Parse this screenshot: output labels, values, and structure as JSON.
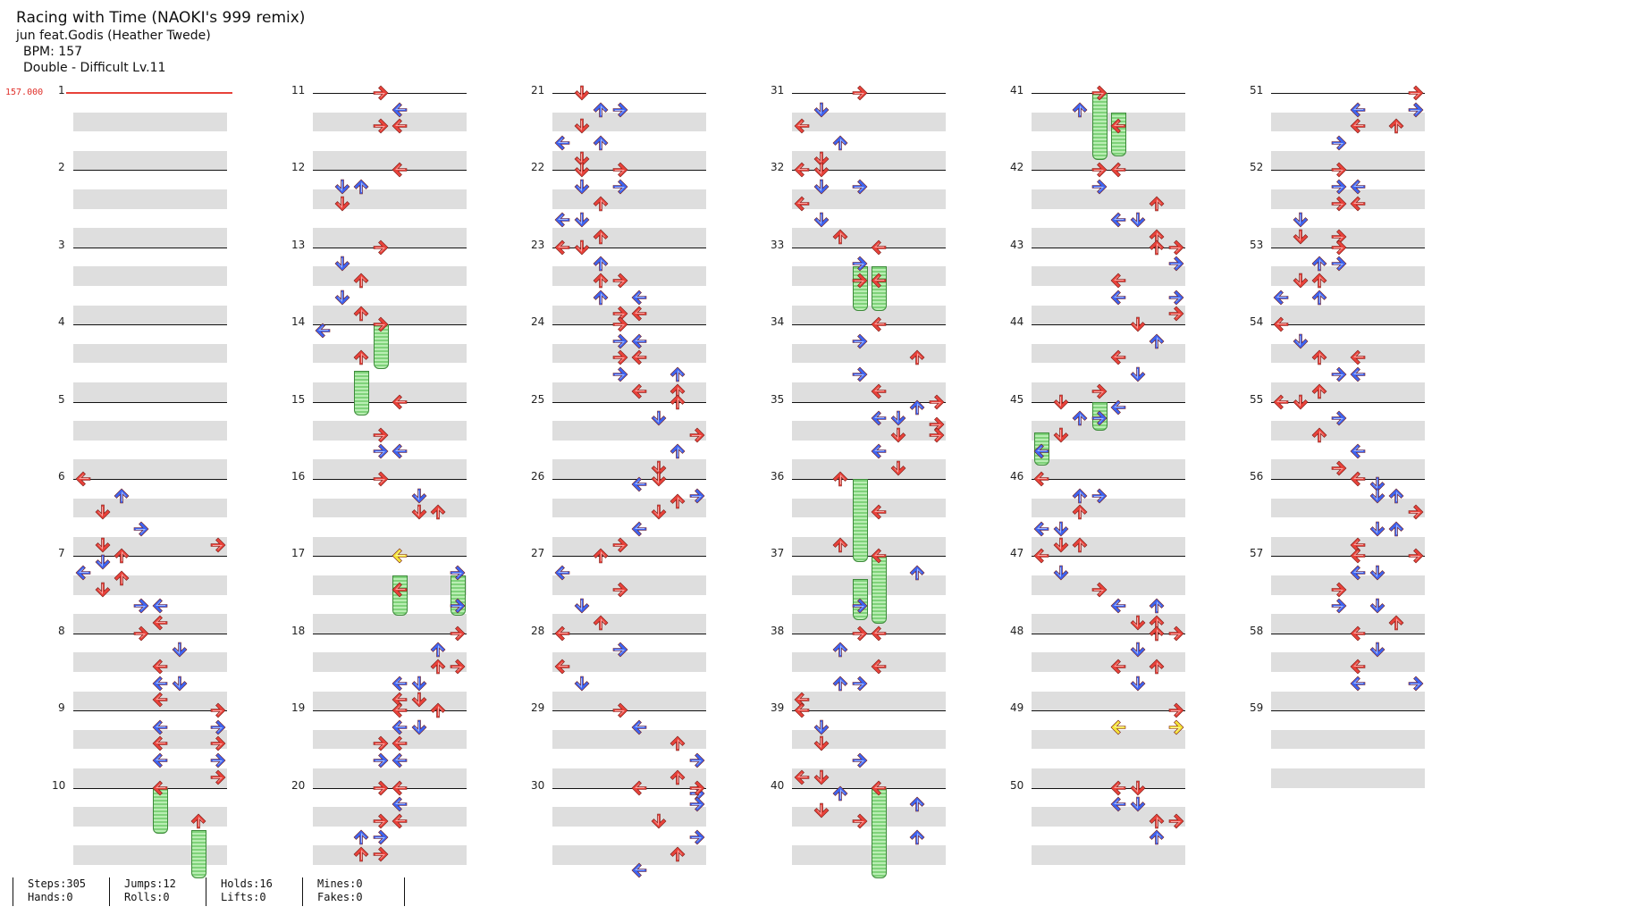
{
  "song": {
    "title": "Racing with Time (NAOKI's 999 remix)",
    "artist": "jun feat.Godis (Heather Twede)",
    "bpm_label": "BPM: 157",
    "difficulty": "Double - Difficult Lv.11"
  },
  "bpm_marker": "157.000",
  "colors": {
    "red": "#e8423a",
    "blue": "#3e64f0",
    "yellow": "#f4e437",
    "green": "#7fd27a",
    "band": "#dedede"
  },
  "stats": [
    {
      "a": "Steps:305",
      "b": "Hands:0"
    },
    {
      "a": "Jumps:12",
      "b": "Rolls:0"
    },
    {
      "a": "Holds:16",
      "b": "Lifts:0"
    },
    {
      "a": "Mines:0",
      "b": "Fakes:0"
    }
  ],
  "measures": [
    {
      "n": "1",
      "notes": []
    },
    {
      "n": "2",
      "notes": []
    },
    {
      "n": "3",
      "notes": []
    },
    {
      "n": "4",
      "notes": []
    },
    {
      "n": "5",
      "notes": []
    },
    {
      "n": "6",
      "notes": [
        [
          0,
          0
        ],
        [
          1,
          2
        ],
        [
          2,
          1
        ],
        [
          3,
          3
        ],
        [
          4,
          1
        ],
        [
          4,
          7
        ],
        [
          5,
          1
        ],
        [
          6,
          2
        ]
      ]
    },
    {
      "n": "7",
      "notes": [
        [
          0,
          2
        ],
        [
          1,
          0
        ],
        [
          2,
          1
        ],
        [
          3,
          3
        ],
        [
          3,
          4
        ],
        [
          4,
          4
        ]
      ]
    },
    {
      "n": "8",
      "notes": [
        [
          0,
          3
        ],
        [
          1,
          5
        ],
        [
          2,
          4
        ],
        [
          3,
          4
        ],
        [
          3,
          5
        ],
        [
          4,
          4
        ]
      ]
    },
    {
      "n": "9",
      "notes": [
        [
          0,
          7
        ],
        [
          1,
          4
        ],
        [
          1,
          7
        ],
        [
          2,
          4
        ],
        [
          2,
          7
        ],
        [
          3,
          4
        ],
        [
          3,
          7
        ],
        [
          4,
          7
        ]
      ]
    },
    {
      "n": "10",
      "notes": [
        [
          0,
          4
        ],
        [
          2,
          6
        ]
      ]
    },
    {
      "n": "11",
      "notes": [
        [
          0,
          3
        ],
        [
          1,
          4
        ],
        [
          2,
          3
        ],
        [
          2,
          4
        ]
      ]
    },
    {
      "n": "12",
      "notes": [
        [
          0,
          4
        ],
        [
          1,
          1
        ],
        [
          1,
          2
        ],
        [
          2,
          1
        ]
      ]
    },
    {
      "n": "13",
      "notes": [
        [
          0,
          3
        ],
        [
          1,
          1
        ],
        [
          2,
          2
        ],
        [
          3,
          1
        ],
        [
          4,
          2
        ],
        [
          5,
          0
        ]
      ]
    },
    {
      "n": "14",
      "notes": [
        [
          0,
          3
        ],
        [
          2,
          2
        ]
      ]
    },
    {
      "n": "15",
      "notes": [
        [
          0,
          4
        ],
        [
          2,
          3
        ],
        [
          3,
          3
        ],
        [
          3,
          4
        ]
      ]
    },
    {
      "n": "16",
      "notes": [
        [
          0,
          3
        ],
        [
          1,
          5
        ],
        [
          2,
          5
        ],
        [
          2,
          6
        ]
      ]
    },
    {
      "n": "17",
      "notes": [
        [
          0,
          4
        ],
        [
          1,
          7
        ],
        [
          2,
          4
        ],
        [
          3,
          7
        ]
      ]
    },
    {
      "n": "18",
      "notes": [
        [
          0,
          7
        ],
        [
          1,
          6
        ],
        [
          2,
          6
        ],
        [
          2,
          7
        ],
        [
          3,
          4
        ],
        [
          3,
          5
        ],
        [
          4,
          4
        ],
        [
          4,
          5
        ]
      ]
    },
    {
      "n": "19",
      "notes": [
        [
          0,
          4
        ],
        [
          0,
          6
        ],
        [
          1,
          4
        ],
        [
          1,
          5
        ],
        [
          2,
          3
        ],
        [
          2,
          4
        ],
        [
          3,
          3
        ],
        [
          3,
          4
        ]
      ]
    },
    {
      "n": "20",
      "notes": [
        [
          0,
          3
        ],
        [
          0,
          4
        ],
        [
          1,
          4
        ],
        [
          2,
          3
        ],
        [
          2,
          4
        ],
        [
          3,
          2
        ],
        [
          3,
          3
        ],
        [
          4,
          2
        ],
        [
          4,
          3
        ]
      ]
    },
    {
      "n": "21",
      "notes": [
        [
          0,
          1
        ],
        [
          1,
          2
        ],
        [
          1,
          3
        ],
        [
          2,
          1
        ],
        [
          3,
          0
        ],
        [
          3,
          2
        ],
        [
          4,
          1
        ]
      ]
    },
    {
      "n": "22",
      "notes": [
        [
          0,
          1
        ],
        [
          0,
          3
        ],
        [
          1,
          1
        ],
        [
          1,
          3
        ],
        [
          2,
          2
        ],
        [
          3,
          0
        ],
        [
          3,
          1
        ],
        [
          4,
          2
        ]
      ]
    },
    {
      "n": "23",
      "notes": [
        [
          0,
          0
        ],
        [
          0,
          1
        ],
        [
          1,
          2
        ],
        [
          2,
          2
        ],
        [
          2,
          3
        ],
        [
          3,
          2
        ],
        [
          3,
          4
        ],
        [
          4,
          3
        ],
        [
          4,
          4
        ]
      ]
    },
    {
      "n": "24",
      "notes": [
        [
          0,
          3
        ],
        [
          1,
          3
        ],
        [
          1,
          4
        ],
        [
          2,
          3
        ],
        [
          2,
          4
        ],
        [
          3,
          3
        ],
        [
          3,
          6
        ],
        [
          4,
          4
        ],
        [
          4,
          6
        ]
      ]
    },
    {
      "n": "25",
      "notes": [
        [
          0,
          6
        ],
        [
          1,
          5
        ],
        [
          2,
          7
        ],
        [
          3,
          6
        ],
        [
          4,
          5
        ],
        [
          5,
          4
        ],
        [
          6,
          6
        ]
      ]
    },
    {
      "n": "26",
      "notes": [
        [
          0,
          5
        ],
        [
          1,
          7
        ],
        [
          2,
          5
        ],
        [
          3,
          4
        ],
        [
          4,
          3
        ]
      ]
    },
    {
      "n": "27",
      "notes": [
        [
          0,
          2
        ],
        [
          1,
          0
        ],
        [
          2,
          3
        ],
        [
          3,
          1
        ],
        [
          4,
          2
        ]
      ]
    },
    {
      "n": "28",
      "notes": [
        [
          0,
          0
        ],
        [
          1,
          3
        ],
        [
          2,
          0
        ],
        [
          3,
          1
        ]
      ]
    },
    {
      "n": "29",
      "notes": [
        [
          0,
          3
        ],
        [
          1,
          4
        ],
        [
          2,
          6
        ],
        [
          3,
          7
        ],
        [
          4,
          6
        ],
        [
          5,
          7
        ]
      ]
    },
    {
      "n": "30",
      "notes": [
        [
          0,
          4
        ],
        [
          0,
          7
        ],
        [
          1,
          7
        ],
        [
          2,
          5
        ],
        [
          3,
          7
        ],
        [
          4,
          6
        ],
        [
          5,
          4
        ]
      ]
    },
    {
      "n": "31",
      "notes": [
        [
          0,
          3
        ],
        [
          1,
          1
        ],
        [
          2,
          0
        ],
        [
          3,
          2
        ],
        [
          4,
          1
        ]
      ]
    },
    {
      "n": "32",
      "notes": [
        [
          0,
          0
        ],
        [
          0,
          1
        ],
        [
          1,
          1
        ],
        [
          1,
          3
        ],
        [
          2,
          0
        ],
        [
          3,
          1
        ],
        [
          4,
          2
        ]
      ]
    },
    {
      "n": "33",
      "notes": [
        [
          0,
          4
        ],
        [
          1,
          3
        ],
        [
          2,
          3
        ],
        [
          2,
          4
        ]
      ]
    },
    {
      "n": "34",
      "notes": [
        [
          0,
          4
        ],
        [
          1,
          3
        ],
        [
          2,
          6
        ],
        [
          3,
          3
        ],
        [
          4,
          4
        ],
        [
          5,
          6
        ],
        [
          6,
          7
        ]
      ]
    },
    {
      "n": "35",
      "notes": [
        [
          0,
          7
        ],
        [
          1,
          4
        ],
        [
          1,
          5
        ],
        [
          2,
          5
        ],
        [
          2,
          7
        ],
        [
          3,
          4
        ],
        [
          4,
          5
        ]
      ]
    },
    {
      "n": "36",
      "notes": [
        [
          0,
          2
        ],
        [
          2,
          4
        ],
        [
          4,
          2
        ]
      ]
    },
    {
      "n": "37",
      "notes": [
        [
          0,
          4
        ],
        [
          1,
          6
        ],
        [
          3,
          3
        ]
      ]
    },
    {
      "n": "38",
      "notes": [
        [
          0,
          3
        ],
        [
          0,
          4
        ],
        [
          1,
          2
        ],
        [
          2,
          4
        ],
        [
          3,
          2
        ],
        [
          3,
          3
        ],
        [
          4,
          0
        ]
      ]
    },
    {
      "n": "39",
      "notes": [
        [
          0,
          0
        ],
        [
          1,
          1
        ],
        [
          2,
          1
        ],
        [
          3,
          3
        ],
        [
          4,
          0
        ],
        [
          4,
          1
        ],
        [
          5,
          2
        ],
        [
          6,
          1
        ]
      ]
    },
    {
      "n": "40",
      "notes": [
        [
          0,
          4
        ],
        [
          1,
          6
        ],
        [
          2,
          3
        ],
        [
          3,
          6
        ]
      ]
    },
    {
      "n": "41",
      "notes": [
        [
          0,
          3
        ],
        [
          1,
          2
        ],
        [
          2,
          4
        ]
      ]
    },
    {
      "n": "42",
      "notes": [
        [
          0,
          3
        ],
        [
          0,
          4
        ],
        [
          1,
          3
        ],
        [
          2,
          6
        ],
        [
          3,
          4
        ],
        [
          3,
          5
        ],
        [
          4,
          6
        ]
      ]
    },
    {
      "n": "43",
      "notes": [
        [
          0,
          6
        ],
        [
          0,
          7
        ],
        [
          1,
          7
        ],
        [
          2,
          4
        ],
        [
          3,
          4
        ],
        [
          3,
          7
        ],
        [
          4,
          7
        ]
      ]
    },
    {
      "n": "44",
      "notes": [
        [
          0,
          5
        ],
        [
          1,
          6
        ],
        [
          2,
          4
        ],
        [
          3,
          5
        ],
        [
          4,
          3
        ],
        [
          5,
          4
        ]
      ]
    },
    {
      "n": "45",
      "notes": [
        [
          0,
          1
        ],
        [
          1,
          3
        ],
        [
          1,
          2
        ],
        [
          2,
          1
        ],
        [
          3,
          0
        ]
      ]
    },
    {
      "n": "46",
      "notes": [
        [
          0,
          0
        ],
        [
          1,
          2
        ],
        [
          1,
          3
        ],
        [
          2,
          2
        ],
        [
          3,
          0
        ],
        [
          3,
          1
        ],
        [
          4,
          1
        ],
        [
          4,
          2
        ]
      ]
    },
    {
      "n": "47",
      "notes": [
        [
          0,
          0
        ],
        [
          1,
          1
        ],
        [
          2,
          3
        ],
        [
          3,
          4
        ],
        [
          3,
          6
        ],
        [
          4,
          5
        ],
        [
          4,
          6
        ]
      ]
    },
    {
      "n": "48",
      "notes": [
        [
          0,
          6
        ],
        [
          0,
          7
        ],
        [
          1,
          5
        ],
        [
          2,
          4
        ],
        [
          2,
          6
        ],
        [
          3,
          5
        ]
      ]
    },
    {
      "n": "49",
      "notes": [
        [
          0,
          7
        ],
        [
          1,
          4
        ],
        [
          1,
          7
        ]
      ]
    },
    {
      "n": "50",
      "notes": [
        [
          0,
          4
        ],
        [
          0,
          5
        ],
        [
          1,
          4
        ],
        [
          1,
          5
        ],
        [
          2,
          6
        ],
        [
          2,
          7
        ],
        [
          3,
          6
        ]
      ]
    },
    {
      "n": "51",
      "notes": [
        [
          0,
          7
        ],
        [
          1,
          4
        ],
        [
          1,
          7
        ],
        [
          2,
          4
        ],
        [
          2,
          6
        ],
        [
          3,
          3
        ]
      ]
    },
    {
      "n": "52",
      "notes": [
        [
          0,
          3
        ],
        [
          1,
          3
        ],
        [
          1,
          4
        ],
        [
          2,
          3
        ],
        [
          2,
          4
        ],
        [
          3,
          1
        ],
        [
          4,
          1
        ],
        [
          4,
          3
        ]
      ]
    },
    {
      "n": "53",
      "notes": [
        [
          0,
          3
        ],
        [
          1,
          2
        ],
        [
          1,
          3
        ],
        [
          2,
          1
        ],
        [
          2,
          2
        ],
        [
          3,
          0
        ],
        [
          3,
          2
        ]
      ]
    },
    {
      "n": "54",
      "notes": [
        [
          0,
          0
        ],
        [
          1,
          1
        ],
        [
          2,
          2
        ],
        [
          2,
          4
        ],
        [
          3,
          3
        ],
        [
          3,
          4
        ],
        [
          4,
          2
        ]
      ]
    },
    {
      "n": "55",
      "notes": [
        [
          0,
          1
        ],
        [
          0,
          0
        ],
        [
          1,
          3
        ],
        [
          2,
          2
        ],
        [
          3,
          4
        ],
        [
          4,
          3
        ],
        [
          5,
          5
        ]
      ]
    },
    {
      "n": "56",
      "notes": [
        [
          0,
          4
        ],
        [
          1,
          5
        ],
        [
          1,
          6
        ],
        [
          2,
          7
        ],
        [
          3,
          5
        ],
        [
          3,
          6
        ],
        [
          4,
          4
        ]
      ]
    },
    {
      "n": "57",
      "notes": [
        [
          0,
          4
        ],
        [
          0,
          7
        ],
        [
          1,
          4
        ],
        [
          1,
          5
        ],
        [
          2,
          3
        ],
        [
          3,
          3
        ],
        [
          3,
          5
        ],
        [
          4,
          6
        ]
      ]
    },
    {
      "n": "58",
      "notes": [
        [
          0,
          4
        ],
        [
          1,
          5
        ],
        [
          2,
          4
        ],
        [
          3,
          4
        ],
        [
          3,
          7
        ]
      ]
    },
    {
      "n": "59",
      "notes": []
    }
  ]
}
